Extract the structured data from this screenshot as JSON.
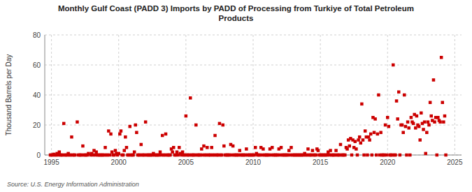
{
  "chart_data": {
    "type": "scatter",
    "title": "Monthly Gulf Coast (PADD 3) Imports by PADD of Processing from Turkiye of Total Petroleum\nProducts",
    "y_label": "Thousand Barrels per Day",
    "source": "Source: U.S. Energy Information Administration",
    "color": "#cc0000",
    "marker": "square",
    "grid": true,
    "xlim": [
      1994.5,
      2025.5
    ],
    "xticks": [
      1995,
      2000,
      2005,
      2010,
      2015,
      2020,
      2025
    ],
    "ylim": [
      0,
      80
    ],
    "yticks": [
      0,
      20,
      40,
      60,
      80
    ],
    "x": [
      1994.917,
      1995.0,
      1995.083,
      1995.167,
      1995.25,
      1995.333,
      1995.417,
      1995.5,
      1995.583,
      1995.667,
      1995.75,
      1995.833,
      1995.917,
      1996.0,
      1996.083,
      1996.167,
      1996.25,
      1996.333,
      1996.417,
      1996.5,
      1996.583,
      1996.667,
      1996.75,
      1996.917,
      1997.0,
      1997.083,
      1997.167,
      1997.25,
      1997.333,
      1997.417,
      1997.5,
      1997.583,
      1997.667,
      1997.75,
      1997.917,
      1998.0,
      1998.083,
      1998.167,
      1998.25,
      1998.333,
      1998.417,
      1998.5,
      1998.583,
      1998.667,
      1998.75,
      1998.833,
      1998.917,
      1999.0,
      1999.083,
      1999.167,
      1999.25,
      1999.333,
      1999.417,
      1999.5,
      1999.583,
      1999.667,
      1999.75,
      1999.833,
      1999.917,
      2000.0,
      2000.083,
      2000.167,
      2000.25,
      2000.333,
      2000.417,
      2000.5,
      2000.583,
      2000.667,
      2000.75,
      2000.833,
      2000.917,
      2001.0,
      2001.083,
      2001.167,
      2001.25,
      2001.333,
      2001.417,
      2001.5,
      2001.583,
      2001.667,
      2001.75,
      2001.833,
      2001.917,
      2002.0,
      2002.083,
      2002.167,
      2002.25,
      2002.333,
      2002.417,
      2002.5,
      2002.583,
      2002.667,
      2002.75,
      2002.833,
      2002.917,
      2003.0,
      2003.083,
      2003.167,
      2003.25,
      2003.333,
      2003.417,
      2003.5,
      2003.583,
      2003.667,
      2003.75,
      2003.833,
      2003.917,
      2004.0,
      2004.083,
      2004.167,
      2004.25,
      2004.333,
      2004.417,
      2004.5,
      2004.583,
      2004.667,
      2004.75,
      2004.833,
      2004.917,
      2005.0,
      2005.083,
      2005.167,
      2005.25,
      2005.333,
      2005.417,
      2005.5,
      2005.583,
      2005.667,
      2005.75,
      2005.833,
      2005.917,
      2006.0,
      2006.083,
      2006.167,
      2006.25,
      2006.333,
      2006.417,
      2006.5,
      2006.583,
      2006.667,
      2006.75,
      2006.833,
      2006.917,
      2007.0,
      2007.083,
      2007.167,
      2007.25,
      2007.333,
      2007.417,
      2007.5,
      2007.583,
      2007.667,
      2007.75,
      2007.833,
      2007.917,
      2008.0,
      2008.083,
      2008.167,
      2008.25,
      2008.333,
      2008.417,
      2008.5,
      2008.583,
      2008.667,
      2008.75,
      2008.833,
      2008.917,
      2009.0,
      2009.083,
      2009.167,
      2009.25,
      2009.333,
      2009.417,
      2009.5,
      2009.583,
      2009.667,
      2009.75,
      2009.833,
      2009.917,
      2010.0,
      2010.083,
      2010.167,
      2010.25,
      2010.333,
      2010.417,
      2010.5,
      2010.583,
      2010.667,
      2010.75,
      2010.833,
      2010.917,
      2011.0,
      2011.083,
      2011.167,
      2011.25,
      2011.333,
      2011.417,
      2011.5,
      2011.583,
      2011.667,
      2011.75,
      2011.833,
      2011.917,
      2012.0,
      2012.083,
      2012.167,
      2012.25,
      2012.333,
      2012.417,
      2012.5,
      2012.583,
      2012.667,
      2012.75,
      2012.833,
      2012.917,
      2013.0,
      2013.083,
      2013.167,
      2013.25,
      2013.333,
      2013.417,
      2013.5,
      2013.583,
      2013.667,
      2013.75,
      2013.833,
      2013.917,
      2014.0,
      2014.083,
      2014.167,
      2014.25,
      2014.333,
      2014.417,
      2014.5,
      2014.583,
      2014.667,
      2014.75,
      2014.833,
      2014.917,
      2015.0,
      2015.083,
      2015.167,
      2015.25,
      2015.333,
      2015.417,
      2015.5,
      2015.583,
      2015.667,
      2015.75,
      2015.833,
      2015.917,
      2016.0,
      2016.083,
      2016.167,
      2016.25,
      2016.333,
      2016.417,
      2016.5,
      2016.583,
      2016.667,
      2016.75,
      2016.833,
      2016.917,
      2017.0,
      2017.083,
      2017.167,
      2017.25,
      2017.333,
      2017.417,
      2017.5,
      2017.583,
      2017.667,
      2017.75,
      2017.833,
      2017.917,
      2018.0,
      2018.083,
      2018.167,
      2018.25,
      2018.333,
      2018.417,
      2018.5,
      2018.583,
      2018.667,
      2018.75,
      2018.833,
      2018.917,
      2019.0,
      2019.083,
      2019.167,
      2019.25,
      2019.333,
      2019.417,
      2019.5,
      2019.583,
      2019.667,
      2019.75,
      2019.833,
      2019.917,
      2020.0,
      2020.083,
      2020.167,
      2020.25,
      2020.333,
      2020.417,
      2020.5,
      2020.583,
      2020.667,
      2020.75,
      2020.833,
      2020.917,
      2021.0,
      2021.083,
      2021.167,
      2021.25,
      2021.333,
      2021.417,
      2021.5,
      2021.583,
      2021.667,
      2021.75,
      2021.833,
      2021.917,
      2022.0,
      2022.083,
      2022.167,
      2022.25,
      2022.333,
      2022.417,
      2022.5,
      2022.583,
      2022.667,
      2022.75,
      2022.833,
      2022.917,
      2023.0,
      2023.083,
      2023.167,
      2023.25,
      2023.333,
      2023.417,
      2023.5,
      2023.583,
      2023.667,
      2023.75,
      2023.833,
      2023.917,
      2024.0,
      2024.083,
      2024.167,
      2024.25,
      2024.333
    ],
    "values": [
      0,
      0,
      0,
      0.5,
      0,
      0,
      1,
      0,
      2,
      0,
      0,
      0,
      21,
      0,
      0,
      0,
      1,
      0,
      0,
      12,
      0,
      0,
      0,
      22,
      0,
      0,
      0,
      0,
      6,
      0,
      0,
      0,
      0,
      1,
      0,
      1,
      0,
      3,
      0,
      2,
      0,
      0,
      0,
      0,
      0,
      0,
      0,
      5,
      0,
      0,
      16,
      0,
      14,
      2,
      0,
      0,
      3,
      1,
      0,
      1,
      14,
      16,
      0,
      0,
      3,
      12,
      5,
      0,
      0,
      19,
      0,
      0,
      0,
      2,
      20,
      15,
      0,
      0,
      0,
      7,
      0,
      0,
      0,
      22,
      0,
      0,
      0,
      0,
      0,
      0,
      1,
      0,
      0,
      0,
      0,
      0,
      2,
      0,
      13,
      0,
      0,
      14,
      0,
      0,
      0,
      0,
      4,
      2,
      5,
      0,
      0,
      2,
      0,
      5,
      1,
      0,
      2,
      0,
      0,
      26,
      0,
      0,
      0,
      38,
      0,
      0,
      0,
      0,
      20,
      0,
      0,
      0,
      0,
      4,
      0,
      6,
      0,
      0,
      5,
      0,
      0,
      0,
      5,
      0,
      0,
      13,
      0,
      0,
      0,
      21,
      0,
      0,
      20,
      6,
      0,
      0,
      0,
      0,
      0,
      7,
      0,
      6,
      0,
      0,
      0,
      0,
      0,
      3,
      0,
      0,
      0,
      0,
      0,
      4,
      0,
      0,
      0,
      0,
      0,
      0,
      0,
      5,
      1,
      0,
      0,
      0,
      5,
      0,
      4,
      0,
      0,
      0,
      0,
      0,
      4,
      0,
      5,
      0,
      0,
      0,
      0,
      0,
      4,
      0,
      5,
      0,
      0,
      0,
      0,
      0,
      0,
      3,
      0,
      5,
      0,
      0,
      0,
      0,
      0,
      0,
      0,
      0,
      0,
      0,
      0,
      1,
      0,
      0,
      4,
      0,
      0,
      0,
      3,
      0,
      0,
      0,
      4,
      3,
      0,
      0,
      0,
      0,
      0,
      0,
      0,
      0,
      2,
      0,
      3,
      0,
      0,
      0,
      0,
      3,
      0,
      0,
      0,
      7,
      0,
      0,
      0,
      0,
      5,
      4,
      10,
      6,
      11,
      0,
      10,
      5,
      9,
      4,
      0,
      10,
      12,
      8,
      34,
      10,
      0,
      16,
      12,
      0,
      12,
      10,
      14,
      0,
      25,
      15,
      24,
      0,
      14,
      40,
      0,
      15,
      0,
      0,
      0,
      20,
      0,
      25,
      19,
      0,
      0,
      0,
      60,
      0,
      0,
      36,
      24,
      42,
      0,
      20,
      20,
      15,
      40,
      19,
      0,
      22,
      18,
      0,
      25,
      22,
      21,
      27,
      18,
      26,
      20,
      19,
      10,
      28,
      21,
      17,
      22,
      1,
      15,
      22,
      20,
      35,
      26,
      23,
      50,
      22,
      25,
      0,
      25,
      23,
      22,
      65,
      35,
      22,
      26,
      0
    ]
  }
}
